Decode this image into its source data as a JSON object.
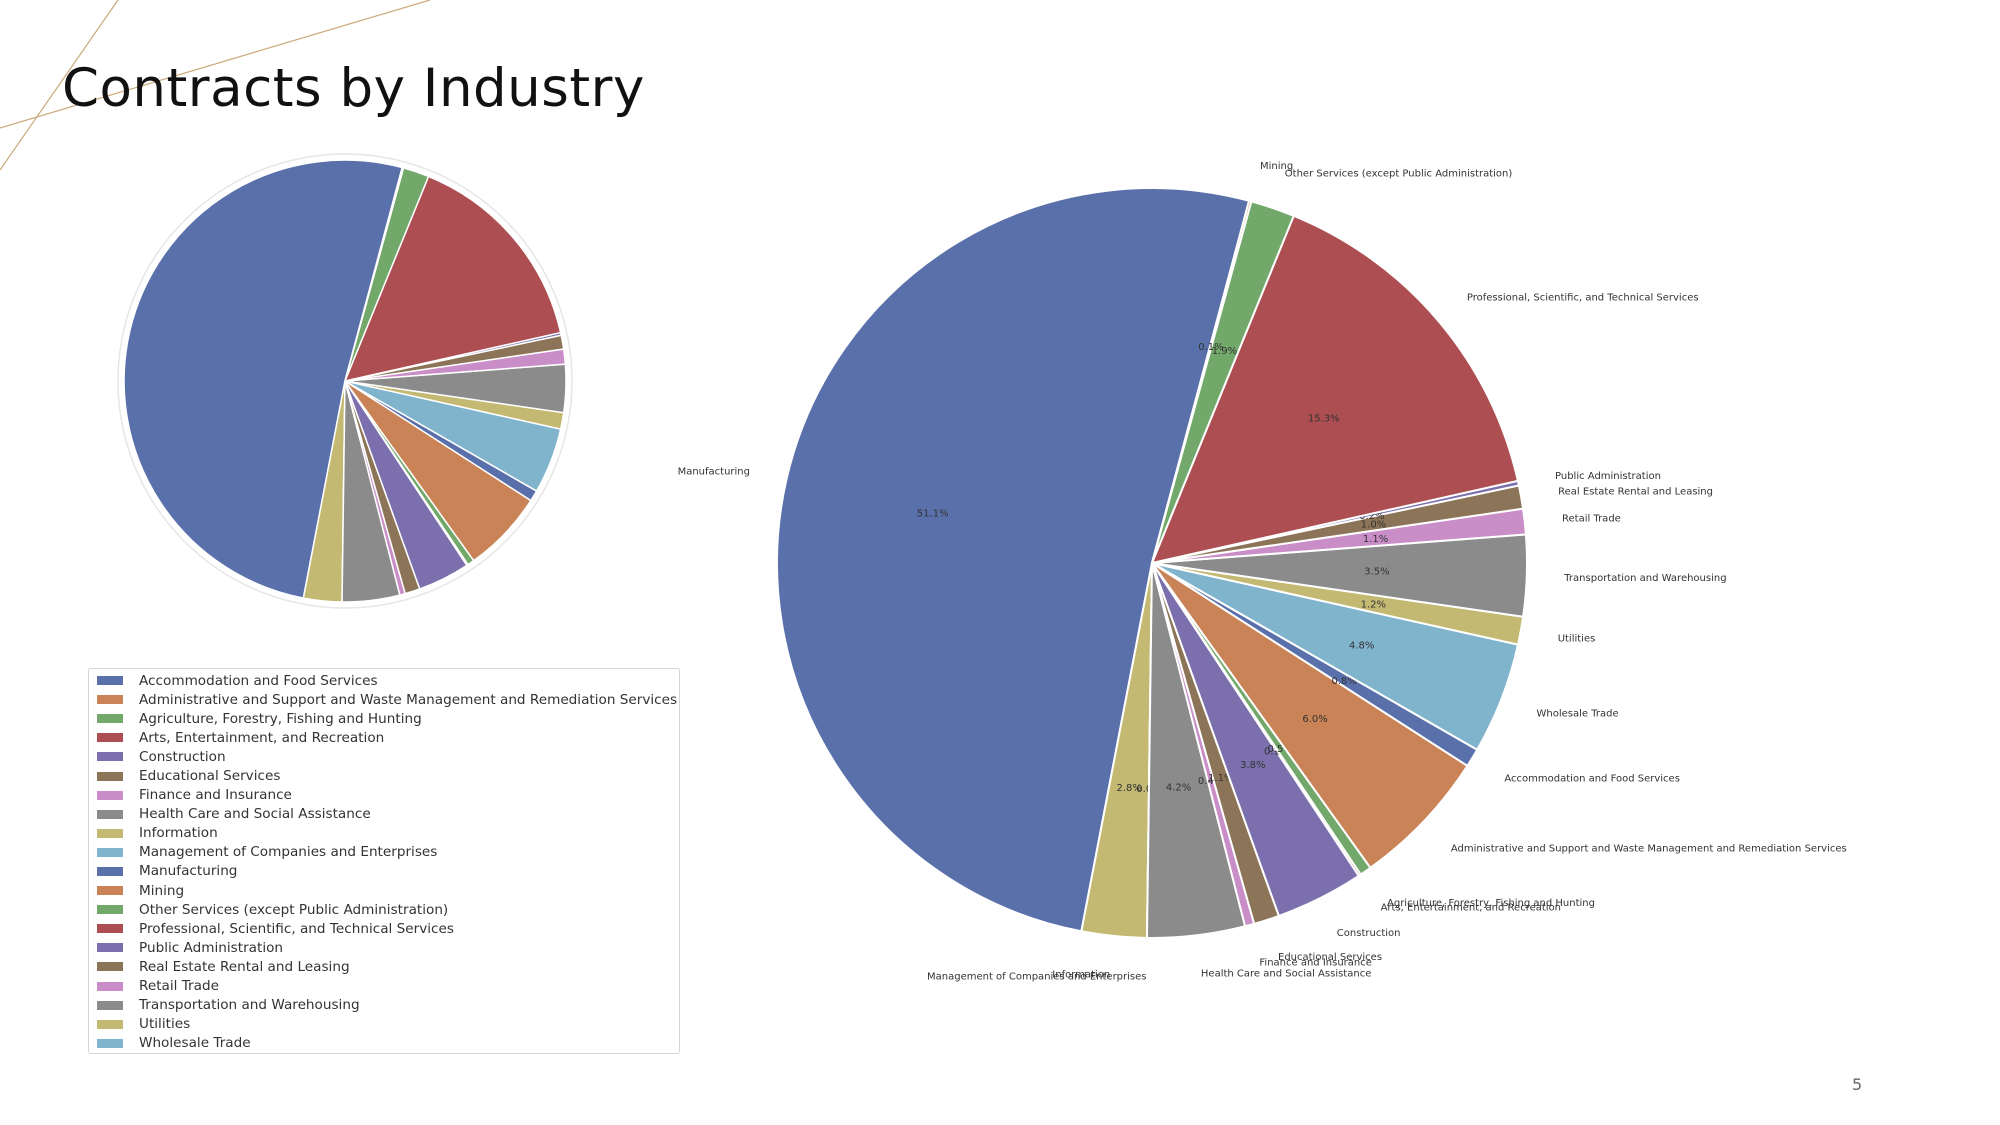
{
  "slide": {
    "title": "Contracts by Industry",
    "page_number": "5"
  },
  "colors": {
    "accent_line": "#c9a97a",
    "background": "#ffffff"
  },
  "chart_data": [
    {
      "type": "pie",
      "title": "",
      "legend_position": "below",
      "slices": [
        {
          "label": "Manufacturing",
          "value": 51.1,
          "percent_label": "51.1%",
          "color": "#5a70ab"
        },
        {
          "label": "Information",
          "value": 2.8,
          "percent_label": "2.8%",
          "color": "#c4b973"
        },
        {
          "label": "Management of Companies and Enterprises",
          "value": 0.0,
          "percent_label": "0.0%",
          "color": "#80b3cc"
        },
        {
          "label": "Health Care and Social Assistance",
          "value": 4.2,
          "percent_label": "4.2%",
          "color": "#8b8b8b"
        },
        {
          "label": "Finance and Insurance",
          "value": 0.4,
          "percent_label": "0.4%",
          "color": "#c98ec8"
        },
        {
          "label": "Educational Services",
          "value": 1.1,
          "percent_label": "1.1%",
          "color": "#8c7458"
        },
        {
          "label": "Construction",
          "value": 3.8,
          "percent_label": "3.8%",
          "color": "#7b6fad"
        },
        {
          "label": "Arts, Entertainment, and Recreation",
          "value": 0.1,
          "percent_label": "0.1%",
          "color": "#ad4f52"
        },
        {
          "label": "Agriculture, Forestry, Fishing and Hunting",
          "value": 0.5,
          "percent_label": "0.5%",
          "color": "#72a86a"
        },
        {
          "label": "Administrative and Support and Waste Management and Remediation Services",
          "value": 6.0,
          "percent_label": "6.0%",
          "color": "#c98356"
        },
        {
          "label": "Accommodation and Food Services",
          "value": 0.8,
          "percent_label": "0.8%",
          "color": "#5a70ab"
        },
        {
          "label": "Wholesale Trade",
          "value": 4.8,
          "percent_label": "4.8%",
          "color": "#80b3cc"
        },
        {
          "label": "Utilities",
          "value": 1.2,
          "percent_label": "1.2%",
          "color": "#c4b973"
        },
        {
          "label": "Transportation and Warehousing",
          "value": 3.5,
          "percent_label": "3.5%",
          "color": "#8b8b8b"
        },
        {
          "label": "Retail Trade",
          "value": 1.1,
          "percent_label": "1.1%",
          "color": "#c98ec8"
        },
        {
          "label": "Real Estate Rental and Leasing",
          "value": 1.0,
          "percent_label": "1.0%",
          "color": "#8c7458"
        },
        {
          "label": "Public Administration",
          "value": 0.2,
          "percent_label": "0.2%",
          "color": "#7b6fad"
        },
        {
          "label": "Professional, Scientific, and Technical Services",
          "value": 15.3,
          "percent_label": "15.3%",
          "color": "#ad4f52"
        },
        {
          "label": "Other Services (except Public Administration)",
          "value": 1.9,
          "percent_label": "1.9%",
          "color": "#72a86a"
        },
        {
          "label": "Mining",
          "value": 0.1,
          "percent_label": "0.1%",
          "color": "#c98356"
        }
      ]
    },
    {
      "type": "pie",
      "title": "",
      "legend_position": "none",
      "show_labels": true,
      "slices_ref": "same as previous chart"
    }
  ],
  "legend": {
    "items": [
      {
        "label": "Accommodation and Food Services",
        "color": "#5a70ab"
      },
      {
        "label": "Administrative and Support and Waste Management and Remediation Services",
        "color": "#c98356"
      },
      {
        "label": "Agriculture, Forestry, Fishing and Hunting",
        "color": "#72a86a"
      },
      {
        "label": "Arts, Entertainment, and Recreation",
        "color": "#ad4f52"
      },
      {
        "label": "Construction",
        "color": "#7b6fad"
      },
      {
        "label": "Educational Services",
        "color": "#8c7458"
      },
      {
        "label": "Finance and Insurance",
        "color": "#c98ec8"
      },
      {
        "label": "Health Care and Social Assistance",
        "color": "#8b8b8b"
      },
      {
        "label": "Information",
        "color": "#c4b973"
      },
      {
        "label": "Management of Companies and Enterprises",
        "color": "#80b3cc"
      },
      {
        "label": "Manufacturing",
        "color": "#5a70ab"
      },
      {
        "label": "Mining",
        "color": "#c98356"
      },
      {
        "label": "Other Services (except Public Administration)",
        "color": "#72a86a"
      },
      {
        "label": "Professional, Scientific, and Technical Services",
        "color": "#ad4f52"
      },
      {
        "label": "Public Administration",
        "color": "#7b6fad"
      },
      {
        "label": "Real Estate Rental and Leasing",
        "color": "#8c7458"
      },
      {
        "label": "Retail Trade",
        "color": "#c98ec8"
      },
      {
        "label": "Transportation and Warehousing",
        "color": "#8b8b8b"
      },
      {
        "label": "Utilities",
        "color": "#c4b973"
      },
      {
        "label": "Wholesale Trade",
        "color": "#80b3cc"
      }
    ]
  }
}
